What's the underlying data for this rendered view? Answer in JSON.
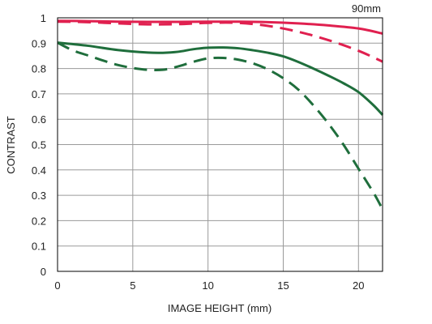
{
  "chart_data": {
    "type": "line",
    "focal_length": "90mm",
    "xlabel": "IMAGE HEIGHT (mm)",
    "ylabel": "CONTRAST",
    "xlim": [
      0,
      21.6
    ],
    "ylim": [
      0,
      1
    ],
    "x_ticks": [
      "0",
      "5",
      "10",
      "15",
      "20"
    ],
    "y_ticks": [
      "0",
      "0.1",
      "0.2",
      "0.3",
      "0.4",
      "0.5",
      "0.6",
      "0.7",
      "0.8",
      "0.9",
      "1"
    ],
    "grid": true,
    "series": [
      {
        "color": "#e0204f",
        "dash": "solid",
        "points": [
          [
            0,
            0.988
          ],
          [
            2,
            0.987
          ],
          [
            4,
            0.985
          ],
          [
            6,
            0.984
          ],
          [
            8,
            0.984
          ],
          [
            10,
            0.985
          ],
          [
            12,
            0.985
          ],
          [
            14,
            0.983
          ],
          [
            16,
            0.978
          ],
          [
            18,
            0.97
          ],
          [
            20,
            0.958
          ],
          [
            21.6,
            0.938
          ]
        ]
      },
      {
        "color": "#e0204f",
        "dash": "dashed",
        "points": [
          [
            0,
            0.985
          ],
          [
            2,
            0.983
          ],
          [
            4,
            0.978
          ],
          [
            6,
            0.974
          ],
          [
            8,
            0.975
          ],
          [
            10,
            0.98
          ],
          [
            12,
            0.98
          ],
          [
            14,
            0.968
          ],
          [
            16,
            0.945
          ],
          [
            18,
            0.912
          ],
          [
            20,
            0.87
          ],
          [
            21.6,
            0.827
          ]
        ]
      },
      {
        "color": "#1f6e3c",
        "dash": "solid",
        "points": [
          [
            0,
            0.902
          ],
          [
            2,
            0.89
          ],
          [
            4,
            0.873
          ],
          [
            6,
            0.863
          ],
          [
            7,
            0.862
          ],
          [
            8,
            0.866
          ],
          [
            9,
            0.876
          ],
          [
            10,
            0.882
          ],
          [
            11,
            0.883
          ],
          [
            12,
            0.88
          ],
          [
            13,
            0.872
          ],
          [
            14,
            0.862
          ],
          [
            15,
            0.848
          ],
          [
            16,
            0.826
          ],
          [
            17,
            0.8
          ],
          [
            18,
            0.772
          ],
          [
            19,
            0.742
          ],
          [
            20,
            0.707
          ],
          [
            21,
            0.655
          ],
          [
            21.6,
            0.617
          ]
        ]
      },
      {
        "color": "#1f6e3c",
        "dash": "dashed",
        "points": [
          [
            0,
            0.902
          ],
          [
            1,
            0.872
          ],
          [
            2,
            0.852
          ],
          [
            3,
            0.832
          ],
          [
            4,
            0.814
          ],
          [
            5,
            0.802
          ],
          [
            6,
            0.795
          ],
          [
            7,
            0.795
          ],
          [
            8,
            0.808
          ],
          [
            9,
            0.826
          ],
          [
            10,
            0.84
          ],
          [
            11,
            0.842
          ],
          [
            12,
            0.835
          ],
          [
            13,
            0.82
          ],
          [
            14,
            0.796
          ],
          [
            15,
            0.762
          ],
          [
            16,
            0.717
          ],
          [
            17,
            0.655
          ],
          [
            18,
            0.583
          ],
          [
            19,
            0.5
          ],
          [
            20,
            0.405
          ],
          [
            21,
            0.31
          ],
          [
            21.6,
            0.245
          ]
        ]
      }
    ]
  }
}
